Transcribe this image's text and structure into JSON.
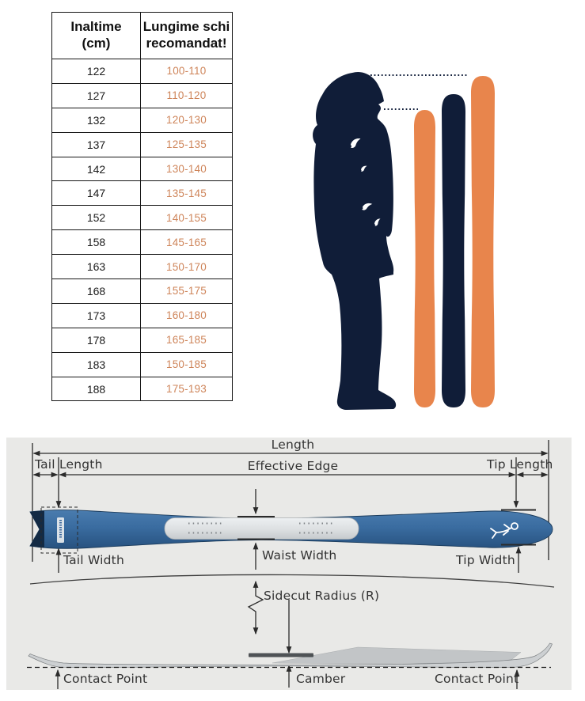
{
  "table": {
    "header": {
      "col1_line1": "Inaltime",
      "col1_line2": "(cm)",
      "col2_line1": "Lungime schi",
      "col2_line2": "recomandat!"
    },
    "rows": [
      {
        "inaltime": "122",
        "lungime": "100-110"
      },
      {
        "inaltime": "127",
        "lungime": "110-120"
      },
      {
        "inaltime": "132",
        "lungime": "120-130"
      },
      {
        "inaltime": "137",
        "lungime": "125-135"
      },
      {
        "inaltime": "142",
        "lungime": "130-140"
      },
      {
        "inaltime": "147",
        "lungime": "135-145"
      },
      {
        "inaltime": "152",
        "lungime": "140-155"
      },
      {
        "inaltime": "158",
        "lungime": "145-165"
      },
      {
        "inaltime": "163",
        "lungime": "150-170"
      },
      {
        "inaltime": "168",
        "lungime": "155-175"
      },
      {
        "inaltime": "173",
        "lungime": "160-180"
      },
      {
        "inaltime": "178",
        "lungime": "165-185"
      },
      {
        "inaltime": "183",
        "lungime": "150-185"
      },
      {
        "inaltime": "188",
        "lungime": "175-193"
      }
    ]
  },
  "illustration": {
    "icons": [
      "person-silhouette-icon",
      "short-orange-ski-icon",
      "medium-navy-ski-icon",
      "tall-orange-ski-icon"
    ]
  },
  "diagram": {
    "length": "Length",
    "tail_length": "Tail Length",
    "effective_edge": "Effective Edge",
    "tip_length": "Tip Length",
    "tail_width": "Tail Width",
    "waist_width": "Waist Width",
    "tip_width": "Tip Width",
    "sidecut_radius": "Sidecut Radius (R)",
    "contact_point_left": "Contact Point",
    "camber": "Camber",
    "contact_point_right": "Contact Point"
  },
  "colors": {
    "orange": "#E8854C",
    "navy": "#101D38",
    "table_value": "#CE8459",
    "ski_blue": "#35649B",
    "panel_bg": "#E9E9E7",
    "label_text": "#333333"
  }
}
